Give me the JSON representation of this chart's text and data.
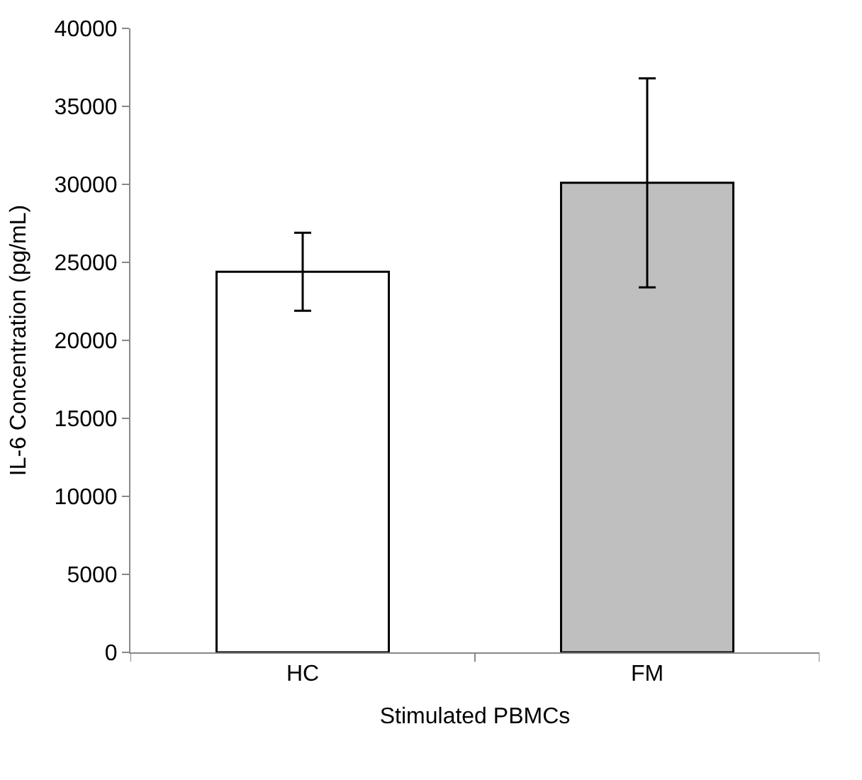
{
  "chart_data": {
    "type": "bar",
    "xlabel": "Stimulated PBMCs",
    "ylabel": "IL-6 Concentration (pg/mL)",
    "categories": [
      "HC",
      "FM"
    ],
    "values": [
      24400,
      30100
    ],
    "colors": [
      "#ffffff",
      "#bfbfbf"
    ],
    "errors": [
      2500,
      6700
    ],
    "ylim": [
      0,
      40000
    ],
    "yticks": [
      0,
      5000,
      10000,
      15000,
      20000,
      25000,
      30000,
      35000,
      40000
    ],
    "legend": false
  }
}
